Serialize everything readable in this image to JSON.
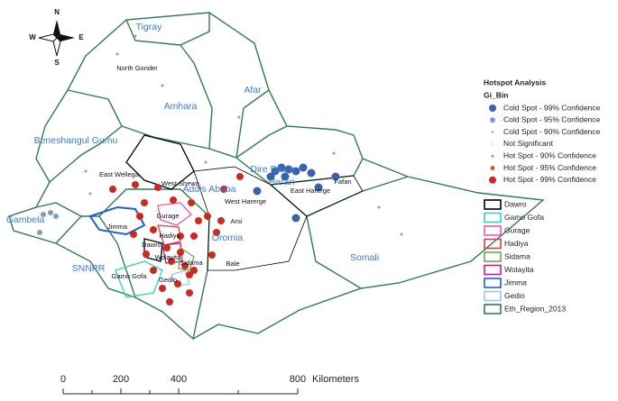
{
  "compass": {
    "north": "N",
    "south": "S",
    "east": "E",
    "west": "W"
  },
  "regions": [
    "Tigray",
    "Amhara",
    "Afar",
    "Beneshangul Gumu",
    "Addis Ababa",
    "Dire Dawa",
    "Harari",
    "Gambela",
    "SNNPR",
    "Oromia",
    "Somali"
  ],
  "zones": [
    "North Gonder",
    "East Wellega",
    "West Shewa",
    "Gurage",
    "Jimma",
    "Hadiya",
    "Dawro",
    "Wolayita",
    "Sidama",
    "Gamo Gofa",
    "Gedio",
    "Arsi",
    "Bale",
    "West Harerge",
    "East Harerge",
    "Fafan"
  ],
  "legend": {
    "title": "Hotspot Analysis",
    "field": "Gi_Bin",
    "classes": [
      "Cold Spot - 99% Confidence",
      "Cold Spot - 95% Confidence",
      "Cold Spot - 90% Confidence",
      "Not Significant",
      "Hot Spot - 90% Confidence",
      "Hot Spot - 95% Confidence",
      "Hot Spot - 99% Confidence"
    ],
    "layers": [
      "Dawro",
      "Gamo Gofa",
      "Gurage",
      "Hadiya",
      "Sidama",
      "Wolayita",
      "Jimma",
      "Gedio",
      "Eth_Region_2013"
    ]
  },
  "scale_bar": {
    "labels": [
      "0",
      "200",
      "400",
      "800"
    ],
    "unit": "Kilometers"
  }
}
